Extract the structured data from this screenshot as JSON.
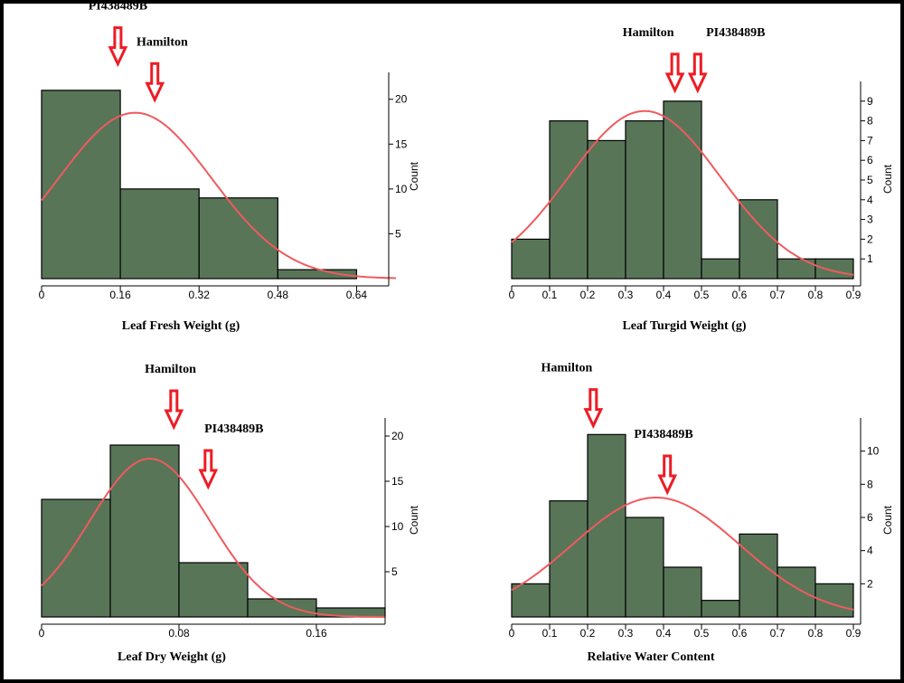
{
  "colors": {
    "bar_fill": "#587558",
    "bar_stroke": "#000000",
    "curve": "#f05a5e",
    "arrow": "#ed1c24",
    "frame": "#000000"
  },
  "chart_data": [
    {
      "type": "bar",
      "title": "",
      "xlabel": "Leaf Fresh Weight (g)",
      "ylabel": "Count",
      "xlim": [
        0,
        0.72
      ],
      "ylim": [
        0,
        23
      ],
      "xticks": [
        0,
        0.16,
        0.32,
        0.48,
        0.64
      ],
      "xtick_labels": [
        "0",
        "0.16",
        "0.32",
        "0.48",
        "0.64"
      ],
      "yticks": [
        5,
        10,
        15,
        20
      ],
      "yaxis_side": "right",
      "bins": [
        {
          "x0": 0,
          "x1": 0.16,
          "count": 21
        },
        {
          "x0": 0.16,
          "x1": 0.32,
          "count": 10
        },
        {
          "x0": 0.32,
          "x1": 0.48,
          "count": 9
        },
        {
          "x0": 0.48,
          "x1": 0.64,
          "count": 1
        }
      ],
      "normal_curve": {
        "mean": 0.19,
        "sd": 0.155,
        "peak": 18.5
      },
      "annotations": [
        {
          "label": "PI438489B",
          "x": 0.155,
          "label_x": 0.155,
          "label_y": 30
        },
        {
          "label": "Hamilton",
          "x": 0.23,
          "label_x": 0.245,
          "label_y": 26
        }
      ]
    },
    {
      "type": "bar",
      "title": "",
      "xlabel": "Leaf Turgid Weight (g)",
      "ylabel": "Count",
      "xlim": [
        0,
        0.9
      ],
      "ylim": [
        0,
        10
      ],
      "xticks": [
        0,
        0.1,
        0.2,
        0.3,
        0.4,
        0.5,
        0.6,
        0.7,
        0.8,
        0.9
      ],
      "xtick_labels": [
        "0",
        "0.1",
        "0.2",
        "0.3",
        "0.4",
        "0.5",
        "0.6",
        "0.7",
        "0.8",
        "0.9"
      ],
      "yticks": [
        1,
        2,
        3,
        4,
        5,
        6,
        7,
        8,
        9
      ],
      "yaxis_side": "right",
      "bins": [
        {
          "x0": 0,
          "x1": 0.1,
          "count": 2
        },
        {
          "x0": 0.1,
          "x1": 0.2,
          "count": 8
        },
        {
          "x0": 0.2,
          "x1": 0.3,
          "count": 7
        },
        {
          "x0": 0.3,
          "x1": 0.4,
          "count": 8
        },
        {
          "x0": 0.4,
          "x1": 0.5,
          "count": 9
        },
        {
          "x0": 0.5,
          "x1": 0.6,
          "count": 1
        },
        {
          "x0": 0.6,
          "x1": 0.7,
          "count": 4
        },
        {
          "x0": 0.7,
          "x1": 0.8,
          "count": 1
        },
        {
          "x0": 0.8,
          "x1": 0.9,
          "count": 1
        }
      ],
      "normal_curve": {
        "mean": 0.35,
        "sd": 0.2,
        "peak": 8.5
      },
      "annotations": [
        {
          "label": "Hamilton",
          "x": 0.43,
          "label_x": 0.36,
          "label_y": 12.3
        },
        {
          "label": "PI438489B",
          "x": 0.49,
          "label_x": 0.59,
          "label_y": 12.3
        }
      ]
    },
    {
      "type": "bar",
      "title": "",
      "xlabel": "Leaf Dry Weight (g)",
      "ylabel": "Count",
      "xlim": [
        0,
        0.2
      ],
      "ylim": [
        0,
        22
      ],
      "xticks": [
        0,
        0.08,
        0.16
      ],
      "xtick_labels": [
        "0",
        "0.08",
        "0.16"
      ],
      "yticks": [
        5,
        10,
        15,
        20
      ],
      "yaxis_side": "right",
      "bins": [
        {
          "x0": 0,
          "x1": 0.04,
          "count": 13
        },
        {
          "x0": 0.04,
          "x1": 0.08,
          "count": 19
        },
        {
          "x0": 0.08,
          "x1": 0.12,
          "count": 6
        },
        {
          "x0": 0.12,
          "x1": 0.16,
          "count": 2
        },
        {
          "x0": 0.16,
          "x1": 0.2,
          "count": 1
        }
      ],
      "normal_curve": {
        "mean": 0.063,
        "sd": 0.035,
        "peak": 17.5
      },
      "annotations": [
        {
          "label": "Hamilton",
          "x": 0.077,
          "label_x": 0.075,
          "label_y": 27
        },
        {
          "label": "PI438489B",
          "x": 0.097,
          "label_x": 0.112,
          "label_y": 20.4
        }
      ]
    },
    {
      "type": "bar",
      "title": "",
      "xlabel": "Relative Water Content",
      "ylabel": "Count",
      "xlim": [
        0,
        0.9
      ],
      "ylim": [
        0,
        12
      ],
      "xticks": [
        0,
        0.1,
        0.2,
        0.3,
        0.4,
        0.5,
        0.6,
        0.7,
        0.8,
        0.9
      ],
      "xtick_labels": [
        "0",
        "0.1",
        "0.2",
        "0.3",
        "0.4",
        "0.5",
        "0.6",
        "0.7",
        "0.8",
        "0.9"
      ],
      "yticks": [
        2,
        4,
        6,
        8,
        10
      ],
      "yaxis_side": "right",
      "bins": [
        {
          "x0": 0,
          "x1": 0.1,
          "count": 2
        },
        {
          "x0": 0.1,
          "x1": 0.2,
          "count": 7
        },
        {
          "x0": 0.2,
          "x1": 0.3,
          "count": 11
        },
        {
          "x0": 0.3,
          "x1": 0.4,
          "count": 6
        },
        {
          "x0": 0.4,
          "x1": 0.5,
          "count": 3
        },
        {
          "x0": 0.5,
          "x1": 0.6,
          "count": 1
        },
        {
          "x0": 0.6,
          "x1": 0.7,
          "count": 5
        },
        {
          "x0": 0.7,
          "x1": 0.8,
          "count": 3
        },
        {
          "x0": 0.8,
          "x1": 0.9,
          "count": 2
        }
      ],
      "normal_curve": {
        "mean": 0.38,
        "sd": 0.22,
        "peak": 7.2
      },
      "annotations": [
        {
          "label": "Hamilton",
          "x": 0.215,
          "label_x": 0.145,
          "label_y": 14.8
        },
        {
          "label": "PI438489B",
          "x": 0.41,
          "label_x": 0.4,
          "label_y": 10.8
        }
      ]
    }
  ]
}
